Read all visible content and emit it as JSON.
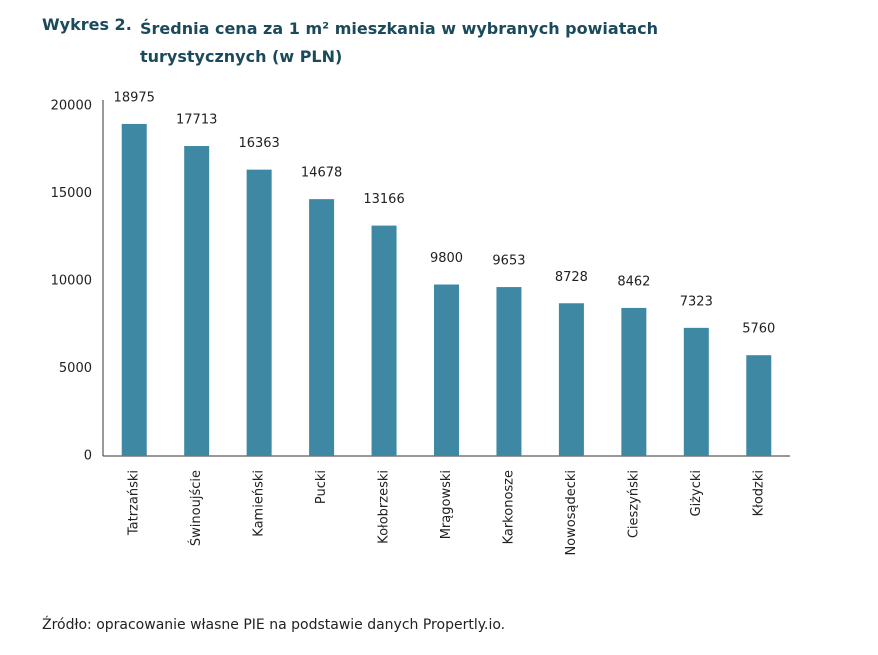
{
  "chart_data": {
    "type": "bar",
    "label": "Wykres 2.",
    "title": "Średnia cena za 1 m² mieszkania w wybranych powiatach turystycznych (w PLN)",
    "categories": [
      "Tatrzański",
      "Świnoujście",
      "Kamieński",
      "Pucki",
      "Kołobrzeski",
      "Mrągowski",
      "Karkonosze",
      "Nowosądecki",
      "Cieszyński",
      "Giżycki",
      "Kłodzki"
    ],
    "values": [
      18975,
      17713,
      16363,
      14678,
      13166,
      9800,
      9653,
      8728,
      8462,
      7323,
      5760
    ],
    "color": "#3f88a3",
    "ylim": [
      0,
      20000
    ],
    "yticks": [
      0,
      5000,
      10000,
      15000,
      20000
    ],
    "grid": false,
    "source": "Źródło: opracowanie własne PIE na podstawie danych Propertly.io."
  }
}
